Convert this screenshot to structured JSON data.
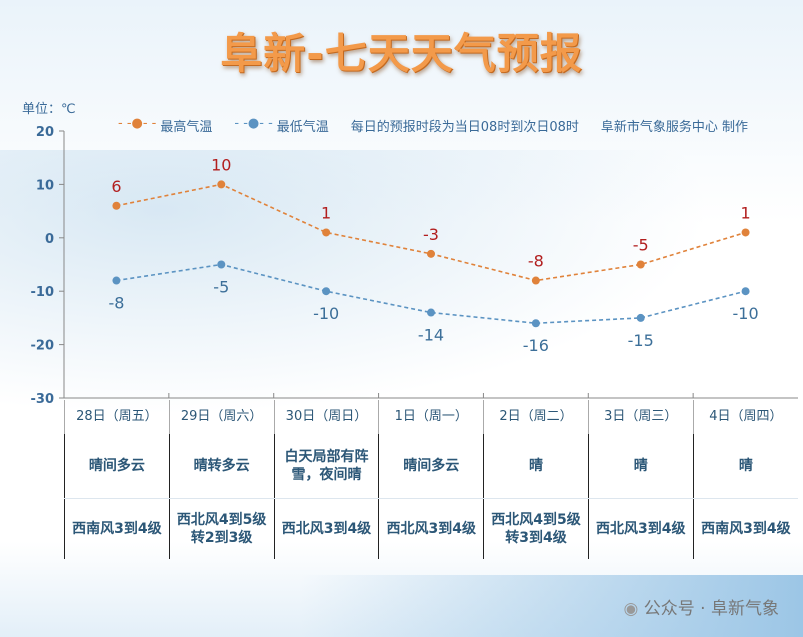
{
  "title": "阜新-七天天气预报",
  "unit_label": "单位：℃",
  "legend": {
    "high": "最高气温",
    "low": "最低气温",
    "note": "每日的预报时段为当日08时到次日08时",
    "credit": "阜新市气象服务中心 制作"
  },
  "watermark": "公众号 · 阜新气象",
  "chart_data": {
    "type": "line",
    "categories": [
      "28日（周五）",
      "29日（周六）",
      "30日（周日）",
      "1日（周一）",
      "2日（周二）",
      "3日（周三）",
      "4日（周四）"
    ],
    "series": [
      {
        "name": "最高气温",
        "values": [
          6,
          10,
          1,
          -3,
          -8,
          -5,
          1
        ],
        "color": "#e0823a",
        "label_color": "#b21e1e"
      },
      {
        "name": "最低气温",
        "values": [
          -8,
          -5,
          -10,
          -14,
          -16,
          -15,
          -10
        ],
        "color": "#5b93c2",
        "label_color": "#3c6f99"
      }
    ],
    "ylabel": "单位：℃",
    "ylim": [
      -30,
      20
    ],
    "yticks": [
      "20",
      "10",
      "0",
      "-10",
      "-20",
      "-30"
    ],
    "line_style": "dashed",
    "legend_position": "top"
  },
  "weather": [
    "晴间多云",
    "晴转多云",
    "白天局部有阵雪，夜间晴",
    "晴间多云",
    "晴",
    "晴",
    "晴"
  ],
  "wind": [
    "西南风3到4级",
    "西北风4到5级转2到3级",
    "西北风3到4级",
    "西北风3到4级",
    "西北风4到5级转3到4级",
    "西北风3到4级",
    "西南风3到4级"
  ]
}
